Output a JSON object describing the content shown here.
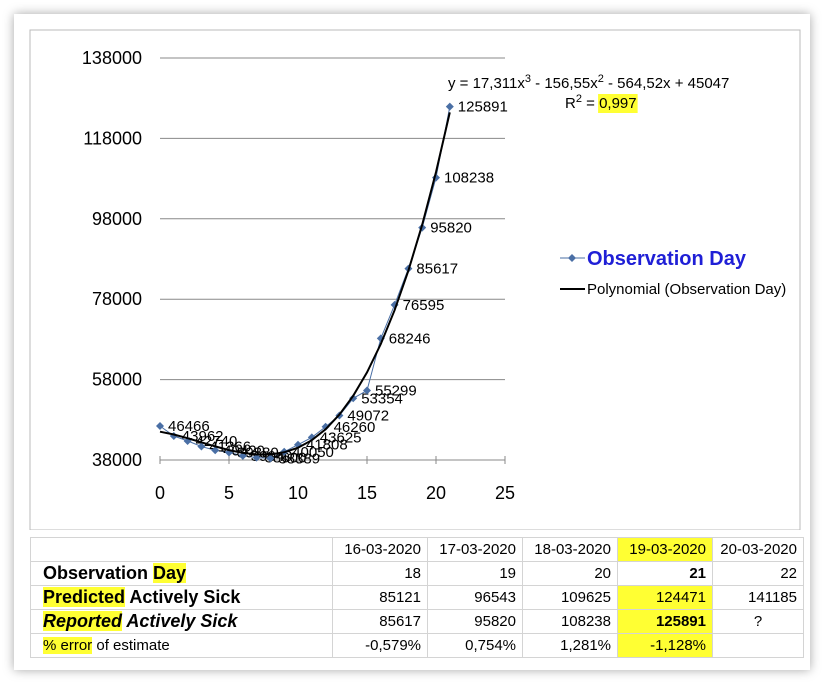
{
  "chart_data": {
    "type": "line",
    "x": [
      0,
      1,
      2,
      3,
      4,
      5,
      6,
      7,
      8,
      9,
      10,
      11,
      12,
      13,
      14,
      15,
      16,
      17,
      18,
      19,
      20,
      21
    ],
    "series": [
      {
        "name": "Observation Day",
        "color": "#4a6fa5",
        "marker": "diamond",
        "values": [
          46466,
          43962,
          42740,
          41366,
          40420,
          39880,
          39040,
          38600,
          38389,
          40050,
          41808,
          43625,
          46260,
          49072,
          53354,
          55299,
          68246,
          76595,
          85617,
          95820,
          108238,
          125891
        ]
      },
      {
        "name": "Polynomial (Observation Day)",
        "color": "#000000",
        "values": [
          45047,
          44343.2,
          43430.2,
          42411.9,
          41392.0,
          40474.5,
          39763.3,
          39362.1,
          39374.9,
          39905.5,
          41057.8,
          42935.7,
          45643.0,
          49283.6,
          53961.3,
          59780.1,
          66843.7,
          75256.1,
          85121.2,
          96542.7,
          109624.6,
          124470.7
        ]
      }
    ],
    "equation": [
      "y = 17,311x",
      "3",
      " - 156,55x",
      "2",
      " - 564,52x + 45047"
    ],
    "r_squared": [
      "R",
      "2",
      " = ",
      "0,997"
    ],
    "xlim": [
      0,
      25
    ],
    "xticks": [
      0,
      5,
      10,
      15,
      20,
      25
    ],
    "ylim": [
      38000,
      138000
    ],
    "yticks": [
      38000,
      58000,
      78000,
      98000,
      118000,
      138000
    ],
    "grid": true,
    "legend": "right"
  },
  "table": {
    "header": [
      "16-03-2020",
      "17-03-2020",
      "18-03-2020",
      "19-03-2020",
      "20-03-2020"
    ],
    "rows": [
      {
        "label": [
          "Observation ",
          "Day"
        ],
        "cells": [
          18,
          19,
          20,
          21,
          22
        ]
      },
      {
        "label": [
          "Predicted",
          " Actively Sick"
        ],
        "cells": [
          85121,
          96543,
          109625,
          124471,
          141185
        ]
      },
      {
        "label": [
          "Reported",
          " Actively Sick"
        ],
        "cells": [
          85617,
          95820,
          108238,
          125891,
          "?"
        ]
      },
      {
        "label": [
          "% error",
          " of estimate"
        ],
        "cells": [
          "-0,579%",
          "0,754%",
          "1,281%",
          "-1,128%"
        ]
      }
    ]
  }
}
